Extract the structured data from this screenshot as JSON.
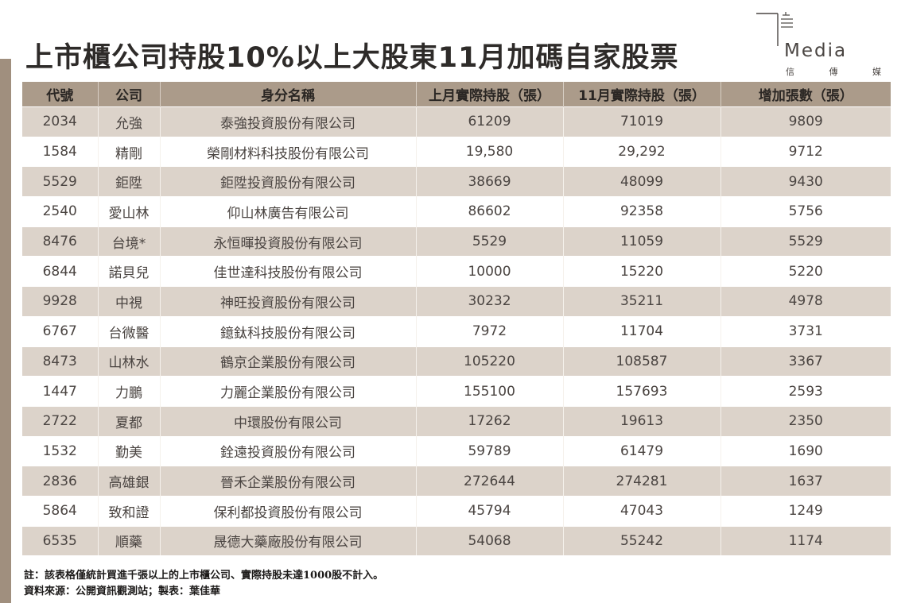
{
  "title": "上市櫃公司持股10%以上大股東11月加碼自家股票",
  "logo": {
    "word": "Media",
    "sub": [
      "信",
      "傳",
      "媒"
    ]
  },
  "table": {
    "headers": [
      "代號",
      "公司",
      "身分名稱",
      "上月實際持股（張）",
      "11月實際持股（張）",
      "增加張數（張）"
    ],
    "rows": [
      [
        "2034",
        "允強",
        "泰強投資股份有限公司",
        "61209",
        "71019",
        "9809"
      ],
      [
        "1584",
        "精剛",
        "榮剛材料科技股份有限公司",
        "19,580",
        "29,292",
        "9712"
      ],
      [
        "5529",
        "鉅陞",
        "鉅陞投資股份有限公司",
        "38669",
        "48099",
        "9430"
      ],
      [
        "2540",
        "愛山林",
        "仰山林廣告有限公司",
        "86602",
        "92358",
        "5756"
      ],
      [
        "8476",
        "台境*",
        "永恒暉投資股份有限公司",
        "5529",
        "11059",
        "5529"
      ],
      [
        "6844",
        "諾貝兒",
        "佳世達科技股份有限公司",
        "10000",
        "15220",
        "5220"
      ],
      [
        "9928",
        "中視",
        "神旺投資股份有限公司",
        "30232",
        "35211",
        "4978"
      ],
      [
        "6767",
        "台微醫",
        "鐿鈦科技股份有限公司",
        "7972",
        "11704",
        "3731"
      ],
      [
        "8473",
        "山林水",
        "鶴京企業股份有限公司",
        "105220",
        "108587",
        "3367"
      ],
      [
        "1447",
        "力鵬",
        "力麗企業股份有限公司",
        "155100",
        "157693",
        "2593"
      ],
      [
        "2722",
        "夏都",
        "中環股份有限公司",
        "17262",
        "19613",
        "2350"
      ],
      [
        "1532",
        "勤美",
        "銓遠投資股份有限公司",
        "59789",
        "61479",
        "1690"
      ],
      [
        "2836",
        "高雄銀",
        "晉禾企業股份有限公司",
        "272644",
        "274281",
        "1637"
      ],
      [
        "5864",
        "致和證",
        "保利都投資股份有限公司",
        "45794",
        "47043",
        "1249"
      ],
      [
        "6535",
        "順藥",
        "晟德大藥廠股份有限公司",
        "54068",
        "55242",
        "1174"
      ]
    ]
  },
  "notes": {
    "line1": "註：該表格僅統計買進千張以上的上市櫃公司、實際持股未達1000股不計入。",
    "line2": "資料來源：公開資訊觀測站；製表：葉佳華"
  },
  "colors": {
    "header_bg": "#ab9b8a",
    "stripe_bg": "#dcd3ca",
    "side_bar": "#a08f7e"
  }
}
